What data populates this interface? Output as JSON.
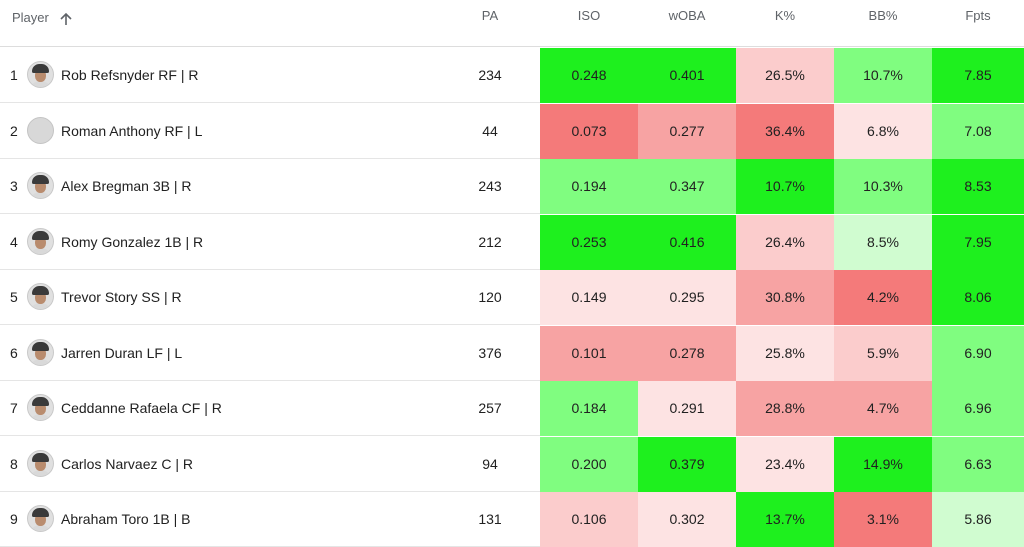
{
  "header": {
    "player": "Player",
    "pa": "PA",
    "iso": "ISO",
    "woba": "wOBA",
    "k_pct": "K%",
    "bb_pct": "BB%",
    "fpts": "Fpts"
  },
  "colors": {
    "strong_green": "#1ef01e",
    "light_green": "#80fd80",
    "pale_green": "#d0fcd0",
    "pale_red": "#fde3e3",
    "light_red": "#fbcccc",
    "medium_red": "#f7a3a3",
    "strong_red": "#f47a7a"
  },
  "rows": [
    {
      "rank": "1",
      "name": "Rob Refsnyder RF | R",
      "avatar": "player-photo",
      "pa": "234",
      "iso": {
        "v": "0.248",
        "c": "strong_green"
      },
      "woba": {
        "v": "0.401",
        "c": "strong_green"
      },
      "k": {
        "v": "26.5%",
        "c": "light_red"
      },
      "bb": {
        "v": "10.7%",
        "c": "light_green"
      },
      "fpts": {
        "v": "7.85",
        "c": "strong_green"
      }
    },
    {
      "rank": "2",
      "name": "Roman Anthony RF | L",
      "avatar": "placeholder",
      "pa": "44",
      "iso": {
        "v": "0.073",
        "c": "strong_red"
      },
      "woba": {
        "v": "0.277",
        "c": "medium_red"
      },
      "k": {
        "v": "36.4%",
        "c": "strong_red"
      },
      "bb": {
        "v": "6.8%",
        "c": "pale_red"
      },
      "fpts": {
        "v": "7.08",
        "c": "light_green"
      }
    },
    {
      "rank": "3",
      "name": "Alex Bregman 3B | R",
      "avatar": "player-photo",
      "pa": "243",
      "iso": {
        "v": "0.194",
        "c": "light_green"
      },
      "woba": {
        "v": "0.347",
        "c": "light_green"
      },
      "k": {
        "v": "10.7%",
        "c": "strong_green"
      },
      "bb": {
        "v": "10.3%",
        "c": "light_green"
      },
      "fpts": {
        "v": "8.53",
        "c": "strong_green"
      }
    },
    {
      "rank": "4",
      "name": "Romy Gonzalez 1B | R",
      "avatar": "player-photo",
      "pa": "212",
      "iso": {
        "v": "0.253",
        "c": "strong_green"
      },
      "woba": {
        "v": "0.416",
        "c": "strong_green"
      },
      "k": {
        "v": "26.4%",
        "c": "light_red"
      },
      "bb": {
        "v": "8.5%",
        "c": "pale_green"
      },
      "fpts": {
        "v": "7.95",
        "c": "strong_green"
      }
    },
    {
      "rank": "5",
      "name": "Trevor Story SS | R",
      "avatar": "player-photo",
      "pa": "120",
      "iso": {
        "v": "0.149",
        "c": "pale_red"
      },
      "woba": {
        "v": "0.295",
        "c": "pale_red"
      },
      "k": {
        "v": "30.8%",
        "c": "medium_red"
      },
      "bb": {
        "v": "4.2%",
        "c": "strong_red"
      },
      "fpts": {
        "v": "8.06",
        "c": "strong_green"
      }
    },
    {
      "rank": "6",
      "name": "Jarren Duran LF | L",
      "avatar": "player-photo",
      "pa": "376",
      "iso": {
        "v": "0.101",
        "c": "medium_red"
      },
      "woba": {
        "v": "0.278",
        "c": "medium_red"
      },
      "k": {
        "v": "25.8%",
        "c": "pale_red"
      },
      "bb": {
        "v": "5.9%",
        "c": "light_red"
      },
      "fpts": {
        "v": "6.90",
        "c": "light_green"
      }
    },
    {
      "rank": "7",
      "name": "Ceddanne Rafaela CF | R",
      "avatar": "player-photo",
      "pa": "257",
      "iso": {
        "v": "0.184",
        "c": "light_green"
      },
      "woba": {
        "v": "0.291",
        "c": "pale_red"
      },
      "k": {
        "v": "28.8%",
        "c": "medium_red"
      },
      "bb": {
        "v": "4.7%",
        "c": "medium_red"
      },
      "fpts": {
        "v": "6.96",
        "c": "light_green"
      }
    },
    {
      "rank": "8",
      "name": "Carlos Narvaez C | R",
      "avatar": "player-photo",
      "pa": "94",
      "iso": {
        "v": "0.200",
        "c": "light_green"
      },
      "woba": {
        "v": "0.379",
        "c": "strong_green"
      },
      "k": {
        "v": "23.4%",
        "c": "pale_red"
      },
      "bb": {
        "v": "14.9%",
        "c": "strong_green"
      },
      "fpts": {
        "v": "6.63",
        "c": "light_green"
      }
    },
    {
      "rank": "9",
      "name": "Abraham Toro 1B | B",
      "avatar": "player-photo",
      "pa": "131",
      "iso": {
        "v": "0.106",
        "c": "light_red"
      },
      "woba": {
        "v": "0.302",
        "c": "pale_red"
      },
      "k": {
        "v": "13.7%",
        "c": "strong_green"
      },
      "bb": {
        "v": "3.1%",
        "c": "strong_red"
      },
      "fpts": {
        "v": "5.86",
        "c": "pale_green"
      }
    }
  ]
}
